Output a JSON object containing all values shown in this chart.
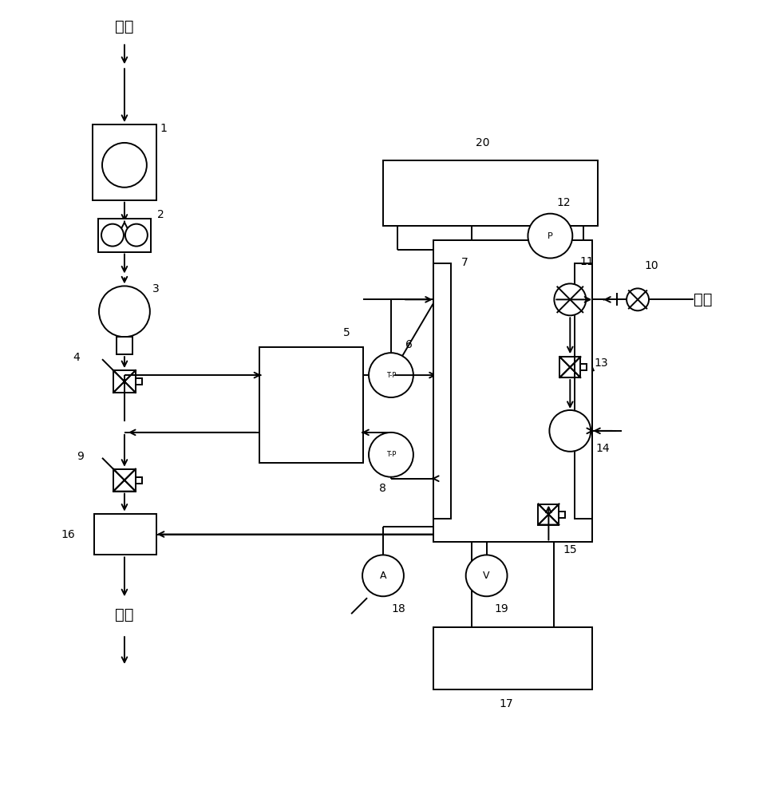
{
  "bg_color": "#ffffff",
  "lc": "#000000",
  "air_label": "空气",
  "atm_label": "大气",
  "h2_label": "氢气"
}
